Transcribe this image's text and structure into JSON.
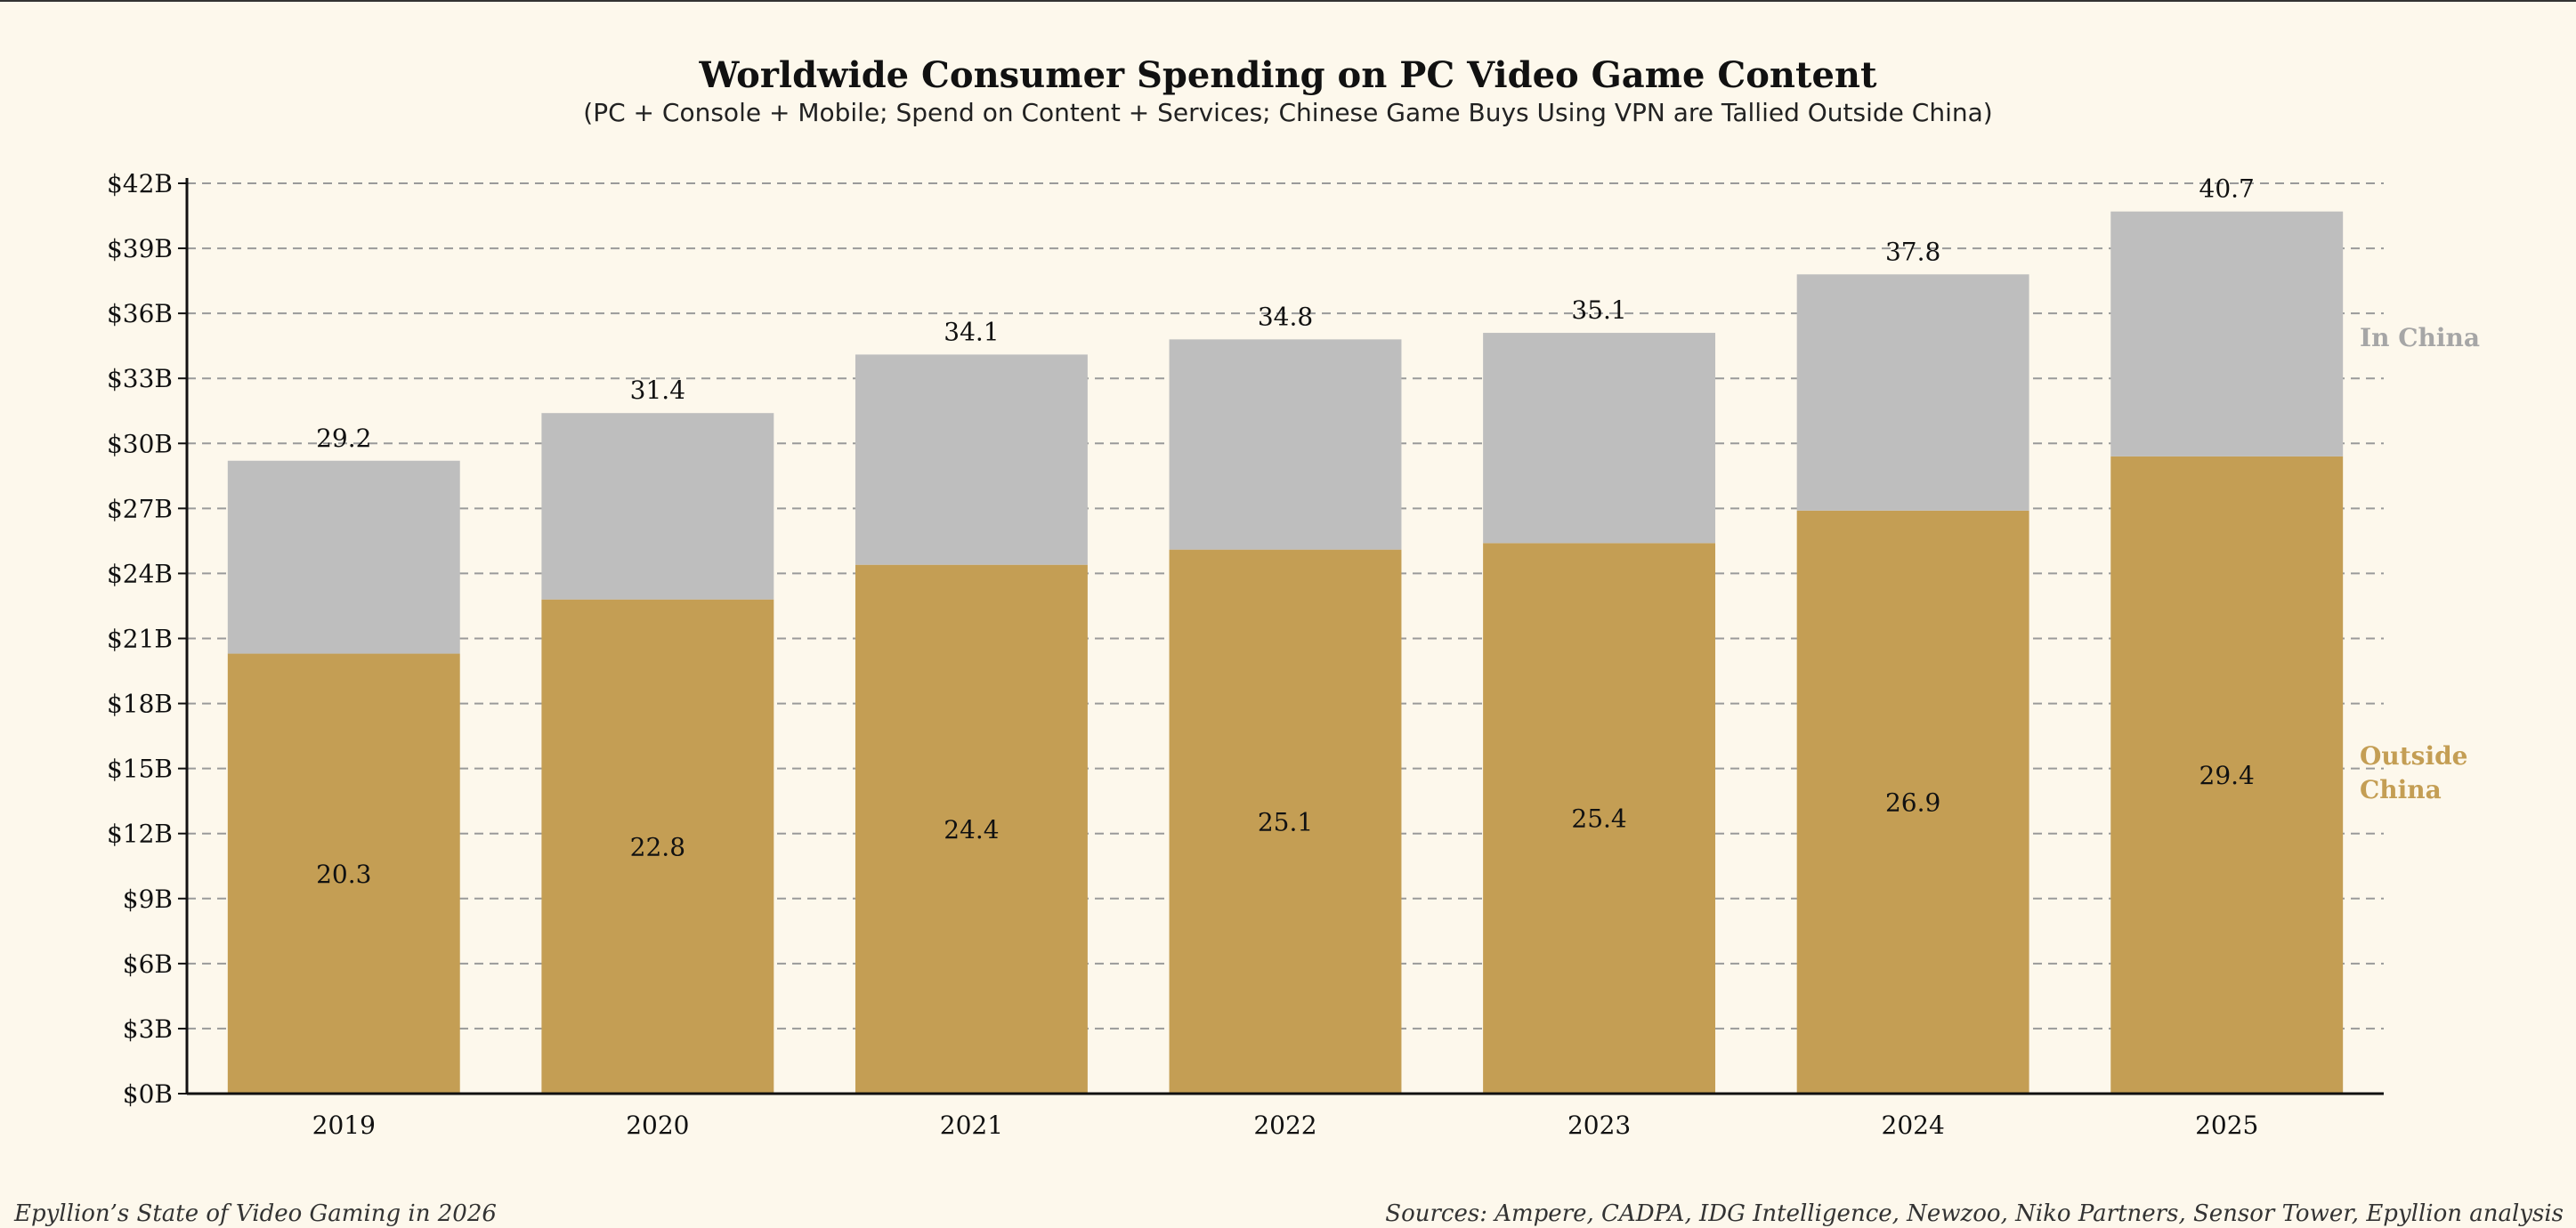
{
  "chart_data": {
    "type": "bar",
    "stacked": true,
    "title": "Worldwide Consumer Spending on PC Video Game Content",
    "subtitle": "(PC + Console + Mobile; Spend on Content + Services; Chinese Game Buys Using VPN are Tallied Outside China)",
    "categories": [
      "2019",
      "2020",
      "2021",
      "2022",
      "2023",
      "2024",
      "2025"
    ],
    "series": [
      {
        "name": "Outside China",
        "color": "#c49e54",
        "values": [
          20.3,
          22.8,
          24.4,
          25.1,
          25.4,
          26.9,
          29.4
        ],
        "value_labels": [
          "20.3",
          "22.8",
          "24.4",
          "25.1",
          "25.4",
          "26.9",
          "29.4"
        ]
      },
      {
        "name": "In China",
        "color": "#bebebe",
        "values": [
          8.9,
          8.6,
          9.7,
          9.7,
          9.7,
          10.9,
          11.3
        ]
      }
    ],
    "totals": [
      29.2,
      31.4,
      34.1,
      34.8,
      35.1,
      37.8,
      40.7
    ],
    "total_labels": [
      "29.2",
      "31.4",
      "34.1",
      "34.8",
      "35.1",
      "37.8",
      "40.7"
    ],
    "ylim": [
      0,
      42
    ],
    "yticks": [
      0,
      3,
      6,
      9,
      12,
      15,
      18,
      21,
      24,
      27,
      30,
      33,
      36,
      39,
      42
    ],
    "ytick_labels": [
      "$0B",
      "$3B",
      "$6B",
      "$9B",
      "$12B",
      "$15B",
      "$18B",
      "$21B",
      "$24B",
      "$27B",
      "$30B",
      "$33B",
      "$36B",
      "$39B",
      "$42B"
    ],
    "grid": true,
    "legend_placement": "right",
    "legend": {
      "in_china": "In China",
      "outside_china_line1": "Outside",
      "outside_china_line2": "China"
    },
    "legend_colors": {
      "in_china": "#a6a6a6",
      "outside_china": "#c49e54"
    }
  },
  "footer": {
    "left": "Epyllion’s State of Video Gaming in 2026",
    "right": "Sources: Ampere, CADPA, IDG Intelligence, Newzoo, Niko Partners, Sensor Tower, Epyllion analysis"
  }
}
